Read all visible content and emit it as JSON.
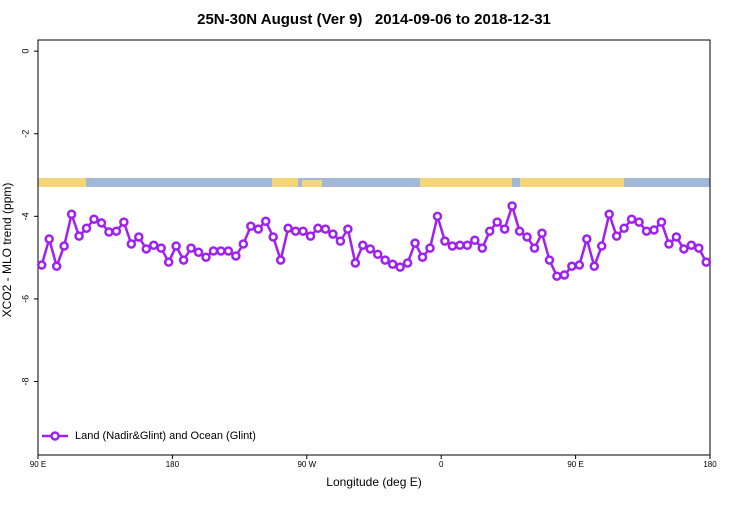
{
  "chart_data": {
    "type": "line",
    "title": "25N-30N August (Ver 9)   2014-09-06 to 2018-12-31",
    "xlabel": "Longitude (deg E)",
    "ylabel": "XCO2 - MLO trend (ppm)",
    "xlim": [
      90,
      540
    ],
    "ylim": [
      -9.78,
      0.27
    ],
    "xticks": [
      {
        "value": 90,
        "label": "90 E"
      },
      180,
      {
        "value": 270,
        "label": "90 W"
      },
      {
        "value": 360,
        "label": "0"
      },
      {
        "value": 450,
        "label": "90 E"
      },
      {
        "value": 540,
        "label": "180"
      }
    ],
    "yticks": [
      0,
      -2,
      -4,
      -6,
      -8
    ],
    "legend": "bottom-left",
    "x": [
      92.5,
      97.5,
      102.5,
      107.5,
      112.5,
      117.5,
      122.5,
      127.5,
      132.5,
      137.5,
      142.5,
      147.5,
      152.5,
      157.5,
      162.5,
      167.5,
      172.5,
      177.5,
      182.5,
      187.5,
      192.5,
      197.5,
      202.5,
      207.5,
      212.5,
      217.5,
      222.5,
      227.5,
      232.5,
      237.5,
      242.5,
      247.5,
      252.5,
      257.5,
      262.5,
      267.5,
      272.5,
      277.5,
      282.5,
      287.5,
      292.5,
      297.5,
      302.5,
      307.5,
      312.5,
      317.5,
      322.5,
      327.5,
      332.5,
      337.5,
      342.5,
      347.5,
      352.5,
      357.5,
      362.5,
      367.5,
      372.5,
      377.5,
      382.5,
      387.5,
      392.5,
      397.5,
      402.5,
      407.5,
      412.5,
      417.5,
      422.5,
      427.5,
      432.5,
      437.5,
      442.5,
      447.5,
      452.5,
      457.5,
      462.5,
      467.5,
      472.5,
      477.5,
      482.5,
      487.5,
      492.5,
      497.5,
      502.5,
      507.5,
      512.5,
      517.5,
      522.5,
      527.5,
      532.5,
      537.5
    ],
    "series": [
      {
        "name": "Land (Nadir&Glint) and Ocean (Glint)",
        "color": "#a020f0",
        "values": [
          -5.18,
          -4.55,
          -5.21,
          -4.72,
          -3.95,
          -4.48,
          -4.29,
          -4.07,
          -4.16,
          -4.38,
          -4.36,
          -4.14,
          -4.67,
          -4.5,
          -4.79,
          -4.7,
          -4.77,
          -5.11,
          -4.72,
          -5.06,
          -4.77,
          -4.87,
          -4.99,
          -4.84,
          -4.84,
          -4.84,
          -4.96,
          -4.67,
          -4.24,
          -4.31,
          -4.12,
          -4.5,
          -5.06,
          -4.29,
          -4.36,
          -4.36,
          -4.48,
          -4.29,
          -4.31,
          -4.43,
          -4.6,
          -4.31,
          -5.13,
          -4.7,
          -4.79,
          -4.92,
          -5.06,
          -5.16,
          -5.23,
          -5.13,
          -4.65,
          -4.99,
          -4.77,
          -4.0,
          -4.6,
          -4.72,
          -4.7,
          -4.7,
          -4.58,
          -4.77,
          -4.36,
          -4.14,
          -4.31,
          -3.75,
          -4.36,
          -4.5,
          -4.77,
          -4.41,
          -5.06,
          -5.45,
          -5.42,
          -5.21,
          -5.18,
          -4.55,
          -5.21,
          -4.72,
          -3.95,
          -4.48,
          -4.29,
          -4.07,
          -4.14,
          -4.36,
          -4.33,
          -4.14,
          -4.67,
          -4.5,
          -4.79,
          -4.7,
          -4.77,
          -5.11
        ]
      }
    ]
  }
}
